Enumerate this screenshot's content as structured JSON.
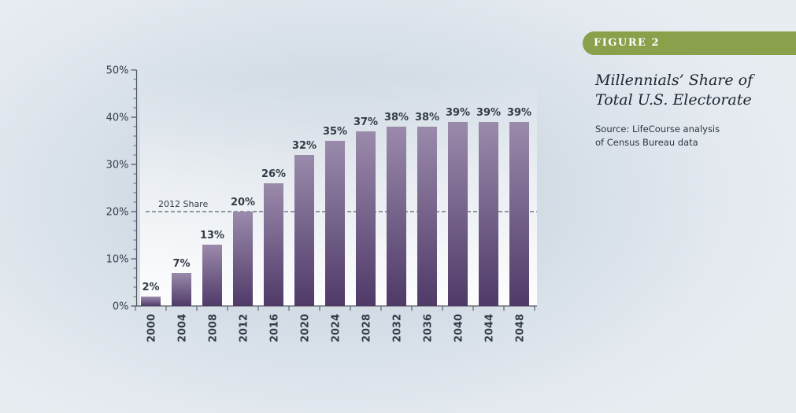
{
  "figure": {
    "badge": "FIGURE 2",
    "title_line1": "Millennials’ Share of",
    "title_line2": "Total U.S. Electorate",
    "source_line1": "Source: LifeCourse analysis",
    "source_line2": "of Census Bureau data"
  },
  "colors": {
    "bar_top": "#9a8aab",
    "bar_bottom": "#4f3a68",
    "badge_green": "#8aa04a",
    "text_dark": "#333c47"
  },
  "chart_data": {
    "type": "bar",
    "title": "Millennials’ Share of Total U.S. Electorate",
    "xlabel": "",
    "ylabel": "",
    "categories": [
      "2000",
      "2004",
      "2008",
      "2012",
      "2016",
      "2020",
      "2024",
      "2028",
      "2032",
      "2036",
      "2040",
      "2044",
      "2048"
    ],
    "values": [
      2,
      7,
      13,
      20,
      26,
      32,
      35,
      37,
      38,
      38,
      39,
      39,
      39
    ],
    "labels": [
      "2%",
      "7%",
      "13%",
      "20%",
      "26%",
      "32%",
      "35%",
      "37%",
      "38%",
      "38%",
      "39%",
      "39%",
      "39%"
    ],
    "ylim": [
      0,
      50
    ],
    "yticks": [
      0,
      10,
      20,
      30,
      40,
      50
    ],
    "ytick_labels": [
      "0%",
      "10%",
      "20%",
      "30%",
      "40%",
      "50%"
    ],
    "reference_line": {
      "value": 20,
      "label": "2012 Share",
      "style": "dashed"
    },
    "grid": false,
    "legend": "none"
  }
}
